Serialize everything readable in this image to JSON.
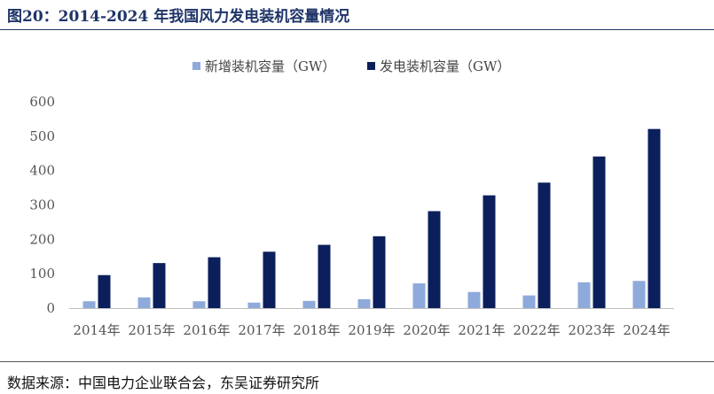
{
  "header": {
    "title": "图20：2014-2024 年我国风力发电装机容量情况"
  },
  "footer": {
    "source": "数据来源：中国电力企业联合会，东吴证券研究所"
  },
  "chart_data": {
    "type": "bar",
    "categories": [
      "2014年",
      "2015年",
      "2016年",
      "2017年",
      "2018年",
      "2019年",
      "2020年",
      "2021年",
      "2022年",
      "2023年",
      "2024年"
    ],
    "series": [
      {
        "name": "新增装机容量（GW）",
        "color": "#8eaadb",
        "values": [
          20,
          31,
          20,
          16,
          21,
          26,
          72,
          47,
          37,
          75,
          79
        ]
      },
      {
        "name": "发电装机容量（GW）",
        "color": "#0b1f5c",
        "values": [
          96,
          131,
          148,
          164,
          184,
          209,
          282,
          328,
          365,
          441,
          521
        ]
      }
    ],
    "yticks": [
      0,
      100,
      200,
      300,
      400,
      500,
      600
    ],
    "ylim": [
      0,
      600
    ],
    "grid": false,
    "legend_position": "top-center"
  }
}
